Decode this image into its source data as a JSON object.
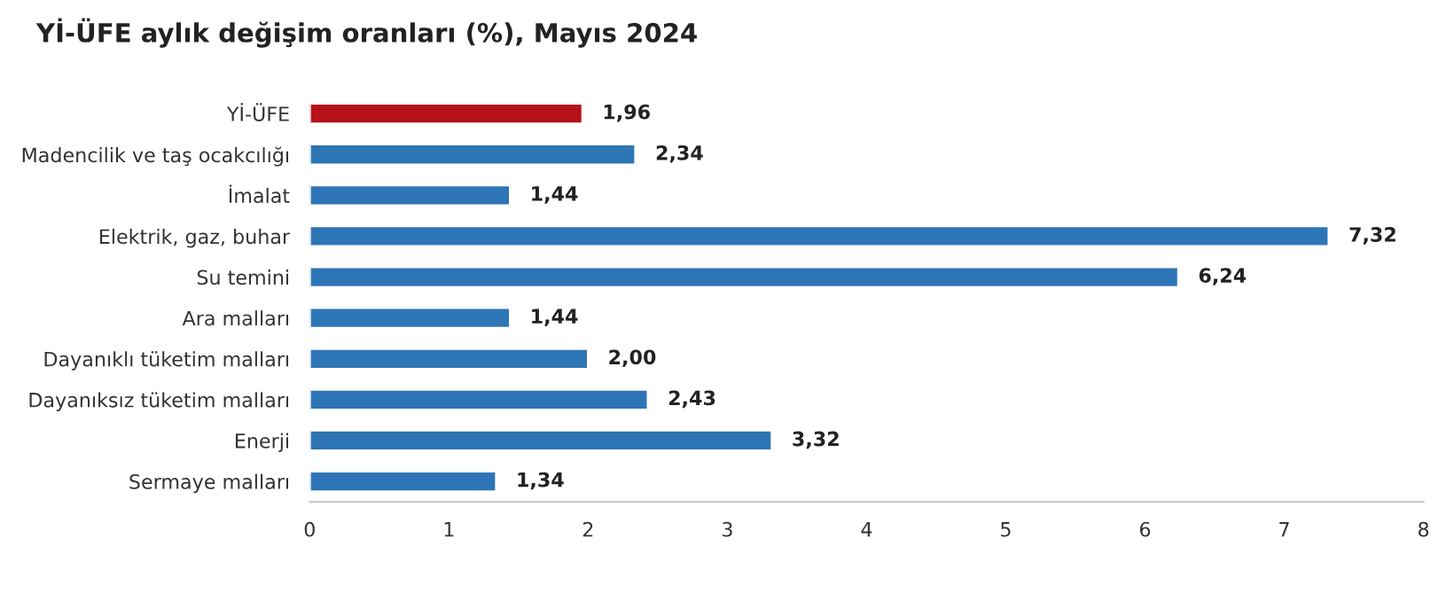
{
  "chart_data": {
    "type": "bar",
    "orientation": "horizontal",
    "title": "Yİ-ÜFE aylık değişim oranları (%), Mayıs 2024",
    "categories": [
      "Yİ-ÜFE",
      "Madencilik ve taş ocakcılığı",
      "İmalat",
      "Elektrik, gaz, buhar",
      "Su temini",
      "Ara malları",
      "Dayanıklı tüketim malları",
      "Dayanıksız tüketim malları",
      "Enerji",
      "Sermaye malları"
    ],
    "values": [
      1.96,
      2.34,
      1.44,
      7.32,
      6.24,
      1.44,
      2.0,
      2.43,
      3.32,
      1.34
    ],
    "value_labels": [
      "1,96",
      "2,34",
      "1,44",
      "7,32",
      "6,24",
      "1,44",
      "2,00",
      "2,43",
      "3,32",
      "1,34"
    ],
    "colors": [
      "#b5121b",
      "#2e75b6",
      "#2e75b6",
      "#2e75b6",
      "#2e75b6",
      "#2e75b6",
      "#2e75b6",
      "#2e75b6",
      "#2e75b6",
      "#2e75b6"
    ],
    "xlim": [
      0,
      8
    ],
    "xticks": [
      0,
      1,
      2,
      3,
      4,
      5,
      6,
      7,
      8
    ],
    "grid": false
  }
}
